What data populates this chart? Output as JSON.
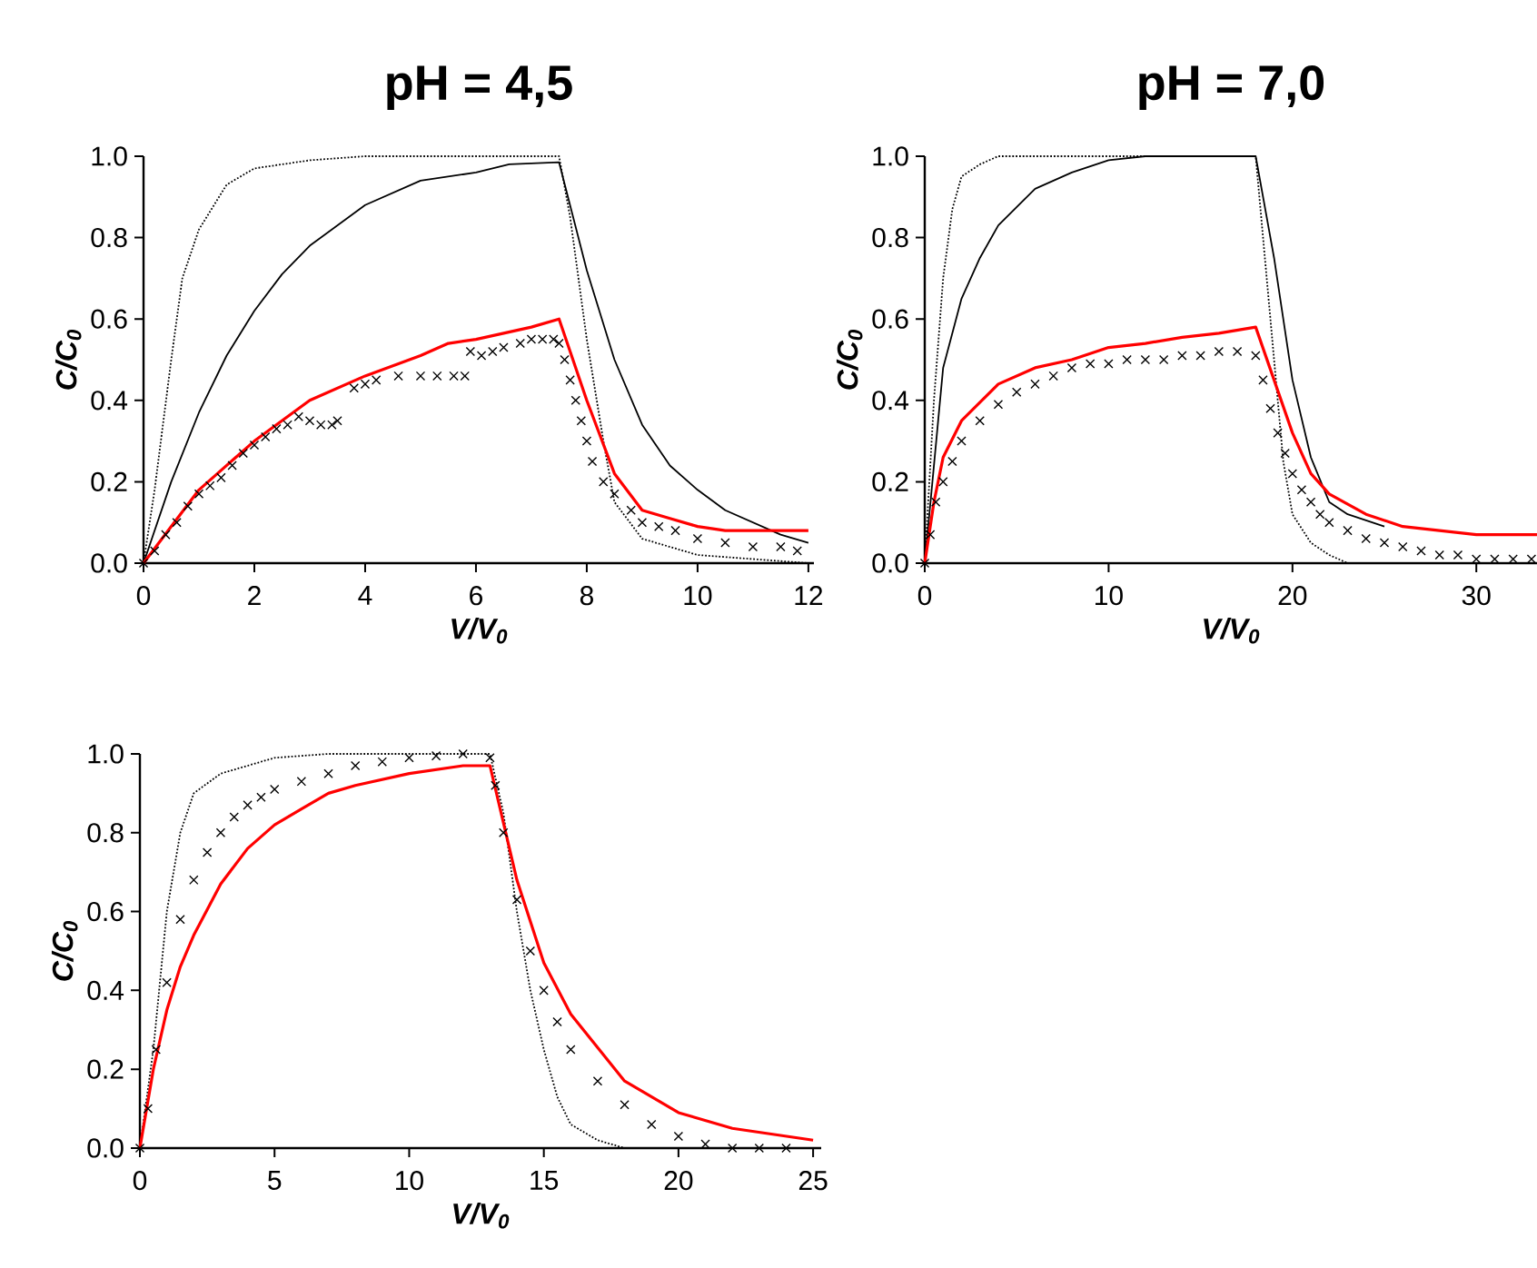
{
  "chart_data": [
    {
      "type": "line",
      "title": "pH = 4,5",
      "xlabel": "V/V$_{0}$",
      "ylabel": "C/C$_{0}$",
      "xlim": [
        0,
        12.1
      ],
      "ylim": [
        0,
        1.0
      ],
      "xticks": [
        0,
        2,
        4,
        6,
        8,
        10,
        12
      ],
      "yticks": [
        {
          "value": 0,
          "label": "0.0"
        },
        {
          "value": 0.2,
          "label": "0.2"
        },
        {
          "value": 0.4,
          "label": "0.4"
        },
        {
          "value": 0.6,
          "label": "0.6"
        },
        {
          "value": 0.8,
          "label": "0.8"
        },
        {
          "value": 1.0,
          "label": "1.0"
        }
      ],
      "series": [
        {
          "line_style": "dotted",
          "color": "#000000",
          "x": [
            0,
            0.2,
            0.5,
            0.7,
            1,
            1.5,
            2,
            3,
            4,
            7.5,
            7.7,
            8,
            8.3,
            8.5,
            9,
            10,
            12
          ],
          "values": [
            0,
            0.18,
            0.5,
            0.7,
            0.82,
            0.93,
            0.97,
            0.99,
            1.0,
            1.0,
            0.85,
            0.55,
            0.3,
            0.15,
            0.06,
            0.02,
            0.0
          ]
        },
        {
          "line_style": "solid",
          "color": "#000000",
          "x": [
            0,
            0.5,
            1,
            1.5,
            2,
            2.5,
            3,
            4,
            5,
            6,
            6.6,
            7.5,
            8,
            8.5,
            9,
            9.5,
            10,
            10.5,
            11,
            11.5,
            12
          ],
          "values": [
            0,
            0.2,
            0.37,
            0.51,
            0.62,
            0.71,
            0.78,
            0.88,
            0.94,
            0.96,
            0.98,
            0.985,
            0.72,
            0.5,
            0.34,
            0.24,
            0.18,
            0.13,
            0.1,
            0.07,
            0.05
          ]
        },
        {
          "type": "scatter",
          "marker": "cross",
          "color": "#000000",
          "x": [
            0,
            0.2,
            0.4,
            0.6,
            0.8,
            1,
            1.2,
            1.4,
            1.6,
            1.8,
            2,
            2.2,
            2.4,
            2.6,
            2.8,
            3,
            3.2,
            3.4,
            3.5,
            3.8,
            4,
            4.2,
            4.6,
            5,
            5.3,
            5.6,
            5.8,
            5.9,
            6.1,
            6.3,
            6.5,
            6.8,
            7,
            7.2,
            7.4,
            7.5,
            7.6,
            7.7,
            7.8,
            7.9,
            8,
            8.1,
            8.3,
            8.5,
            8.8,
            9,
            9.3,
            9.6,
            10,
            10.5,
            11,
            11.5,
            11.8
          ],
          "values": [
            0,
            0.03,
            0.07,
            0.1,
            0.14,
            0.17,
            0.19,
            0.21,
            0.24,
            0.27,
            0.29,
            0.31,
            0.33,
            0.34,
            0.36,
            0.35,
            0.34,
            0.34,
            0.35,
            0.43,
            0.44,
            0.45,
            0.46,
            0.46,
            0.46,
            0.46,
            0.46,
            0.52,
            0.51,
            0.52,
            0.53,
            0.54,
            0.55,
            0.55,
            0.55,
            0.54,
            0.5,
            0.45,
            0.4,
            0.35,
            0.3,
            0.25,
            0.2,
            0.17,
            0.13,
            0.1,
            0.09,
            0.08,
            0.06,
            0.05,
            0.04,
            0.04,
            0.03
          ]
        },
        {
          "line_style": "solid",
          "color": "#ff0000",
          "x": [
            0,
            1,
            2,
            3,
            4,
            5,
            5.5,
            6,
            7,
            7.5,
            7.7,
            8,
            8.5,
            9,
            9.5,
            10,
            10.5,
            11,
            12
          ],
          "values": [
            0,
            0.18,
            0.3,
            0.4,
            0.46,
            0.51,
            0.54,
            0.55,
            0.58,
            0.6,
            0.52,
            0.4,
            0.22,
            0.13,
            0.11,
            0.09,
            0.08,
            0.08,
            0.08
          ]
        }
      ]
    },
    {
      "type": "line",
      "title": "pH = 7,0",
      "xlabel": "V/V$_{0}$",
      "ylabel": "C/C$_{0}$",
      "xlim": [
        0,
        33.3
      ],
      "ylim": [
        0,
        1.0
      ],
      "xticks": [
        0,
        10,
        20,
        30
      ],
      "yticks": [
        {
          "value": 0,
          "label": "0.0"
        },
        {
          "value": 0.2,
          "label": "0.2"
        },
        {
          "value": 0.4,
          "label": "0.4"
        },
        {
          "value": 0.6,
          "label": "0.6"
        },
        {
          "value": 0.8,
          "label": "0.8"
        },
        {
          "value": 1.0,
          "label": "1.0"
        }
      ],
      "series": [
        {
          "line_style": "dotted",
          "color": "#000000",
          "x": [
            0,
            0.5,
            1,
            1.5,
            2,
            3,
            4,
            18,
            18.5,
            19,
            19.5,
            20,
            21,
            22,
            23,
            33
          ],
          "values": [
            0,
            0.4,
            0.7,
            0.87,
            0.95,
            0.98,
            1.0,
            1.0,
            0.75,
            0.5,
            0.25,
            0.12,
            0.05,
            0.02,
            0.0,
            0.0
          ]
        },
        {
          "line_style": "solid",
          "color": "#000000",
          "x": [
            0,
            1,
            2,
            3,
            4,
            6,
            8,
            10,
            12,
            18,
            19,
            20,
            21,
            22,
            23,
            25
          ],
          "values": [
            0,
            0.48,
            0.65,
            0.75,
            0.83,
            0.92,
            0.96,
            0.99,
            1.0,
            1.0,
            0.75,
            0.45,
            0.26,
            0.15,
            0.12,
            0.09
          ]
        },
        {
          "type": "scatter",
          "marker": "cross",
          "color": "#000000",
          "x": [
            0,
            0.3,
            0.6,
            1,
            1.5,
            2,
            3,
            4,
            5,
            6,
            7,
            8,
            9,
            10,
            11,
            12,
            13,
            14,
            15,
            16,
            17,
            18,
            18.4,
            18.8,
            19.2,
            19.6,
            20,
            20.5,
            21,
            21.5,
            22,
            23,
            24,
            25,
            26,
            27,
            28,
            29,
            30,
            31,
            32,
            33
          ],
          "values": [
            0,
            0.07,
            0.15,
            0.2,
            0.25,
            0.3,
            0.35,
            0.39,
            0.42,
            0.44,
            0.46,
            0.48,
            0.49,
            0.49,
            0.5,
            0.5,
            0.5,
            0.51,
            0.51,
            0.52,
            0.52,
            0.51,
            0.45,
            0.38,
            0.32,
            0.27,
            0.22,
            0.18,
            0.15,
            0.12,
            0.1,
            0.08,
            0.06,
            0.05,
            0.04,
            0.03,
            0.02,
            0.02,
            0.01,
            0.01,
            0.01,
            0.01
          ]
        },
        {
          "line_style": "solid",
          "color": "#ff0000",
          "x": [
            0,
            0.5,
            1,
            2,
            4,
            6,
            8,
            10,
            12,
            14,
            16,
            18,
            19,
            20,
            21,
            22,
            24,
            26,
            28,
            30,
            33.3
          ],
          "values": [
            0,
            0.15,
            0.26,
            0.35,
            0.44,
            0.48,
            0.5,
            0.53,
            0.54,
            0.555,
            0.565,
            0.58,
            0.45,
            0.32,
            0.22,
            0.17,
            0.12,
            0.09,
            0.08,
            0.07,
            0.07
          ]
        }
      ]
    },
    {
      "type": "line",
      "xlabel": "V/V$_{0}$",
      "ylabel": "C/C$_{0}$",
      "xlim": [
        0,
        25.3
      ],
      "ylim": [
        0,
        1.0
      ],
      "xticks": [
        0,
        5,
        10,
        15,
        20,
        25
      ],
      "yticks": [
        {
          "value": 0,
          "label": "0.0"
        },
        {
          "value": 0.2,
          "label": "0.2"
        },
        {
          "value": 0.4,
          "label": "0.4"
        },
        {
          "value": 0.6,
          "label": "0.6"
        },
        {
          "value": 0.8,
          "label": "0.8"
        },
        {
          "value": 1.0,
          "label": "1.0"
        }
      ],
      "series": [
        {
          "line_style": "dotted",
          "color": "#000000",
          "x": [
            0,
            0.5,
            1,
            1.5,
            2,
            3,
            5,
            7,
            13,
            13.5,
            14,
            14.5,
            15,
            15.5,
            16,
            17,
            18,
            25
          ],
          "values": [
            0,
            0.25,
            0.6,
            0.8,
            0.9,
            0.95,
            0.99,
            1.0,
            1.0,
            0.85,
            0.6,
            0.4,
            0.25,
            0.13,
            0.06,
            0.02,
            0.0,
            0.0
          ]
        },
        {
          "type": "scatter",
          "marker": "cross",
          "color": "#000000",
          "x": [
            0,
            0.3,
            0.6,
            1,
            1.5,
            2,
            2.5,
            3,
            3.5,
            4,
            4.5,
            5,
            6,
            7,
            8,
            9,
            10,
            11,
            12,
            13,
            13.2,
            13.5,
            14,
            14.5,
            15,
            15.5,
            16,
            17,
            18,
            19,
            20,
            21,
            22,
            23,
            24
          ],
          "values": [
            0,
            0.1,
            0.25,
            0.42,
            0.58,
            0.68,
            0.75,
            0.8,
            0.84,
            0.87,
            0.89,
            0.91,
            0.93,
            0.95,
            0.97,
            0.98,
            0.99,
            0.995,
            1.0,
            0.99,
            0.92,
            0.8,
            0.63,
            0.5,
            0.4,
            0.32,
            0.25,
            0.17,
            0.11,
            0.06,
            0.03,
            0.01,
            0.0,
            0.0,
            0.0
          ]
        },
        {
          "line_style": "solid",
          "color": "#ff0000",
          "x": [
            0,
            0.5,
            1,
            1.5,
            2,
            3,
            4,
            5,
            6,
            7,
            8,
            10,
            12,
            13,
            14,
            15,
            16,
            18,
            20,
            22,
            25
          ],
          "values": [
            0,
            0.2,
            0.35,
            0.46,
            0.54,
            0.67,
            0.76,
            0.82,
            0.86,
            0.9,
            0.92,
            0.95,
            0.97,
            0.97,
            0.68,
            0.47,
            0.34,
            0.17,
            0.09,
            0.05,
            0.02
          ]
        }
      ]
    }
  ]
}
